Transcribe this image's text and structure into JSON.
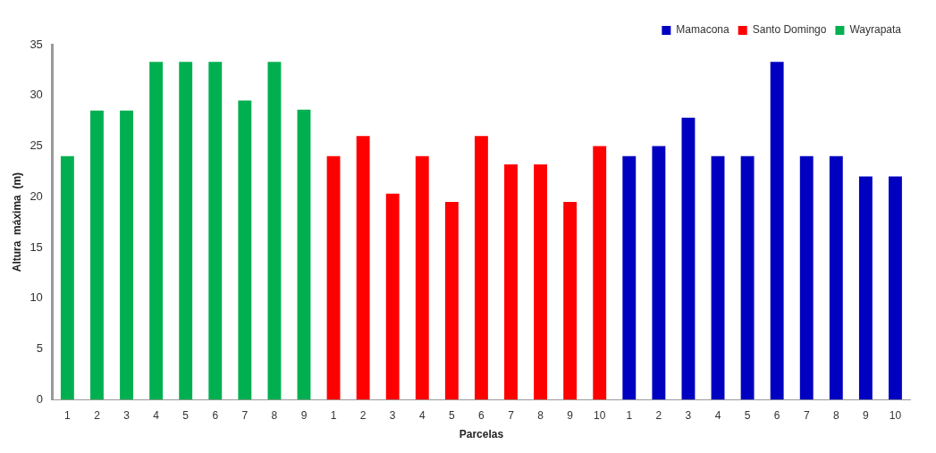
{
  "chart_data": {
    "type": "bar",
    "xlabel": "Parcelas",
    "ylabel": "Altura  máxima  (m)",
    "categories": [
      "1",
      "2",
      "3",
      "4",
      "5",
      "6",
      "7",
      "8",
      "9",
      "1",
      "2",
      "3",
      "4",
      "5",
      "6",
      "7",
      "8",
      "9",
      "10",
      "1",
      "2",
      "3",
      "4",
      "5",
      "6",
      "7",
      "8",
      "9",
      "10"
    ],
    "series": [
      {
        "name": "Mamacona",
        "color": "#0000c0",
        "values": [
          null,
          null,
          null,
          null,
          null,
          null,
          null,
          null,
          null,
          null,
          null,
          null,
          null,
          null,
          null,
          null,
          null,
          null,
          null,
          24,
          25,
          27.8,
          24,
          24,
          33.3,
          24,
          24,
          22,
          22
        ]
      },
      {
        "name": "Santo Domingo",
        "color": "#ff0000",
        "values": [
          null,
          null,
          null,
          null,
          null,
          null,
          null,
          null,
          null,
          24,
          26,
          20.3,
          24,
          19.5,
          26,
          23.2,
          23.2,
          19.5,
          25,
          null,
          null,
          null,
          null,
          null,
          null,
          null,
          null,
          null,
          null
        ]
      },
      {
        "name": "Wayrapata",
        "color": "#00b050",
        "values": [
          24,
          28.5,
          28.5,
          33.3,
          33.3,
          33.3,
          29.5,
          33.3,
          28.6,
          null,
          null,
          null,
          null,
          null,
          null,
          null,
          null,
          null,
          null,
          null,
          null,
          null,
          null,
          null,
          null,
          null,
          null,
          null,
          null
        ]
      }
    ],
    "ylim": [
      0,
      35
    ],
    "yticks": [
      0,
      5,
      10,
      15,
      20,
      25,
      30,
      35
    ],
    "grid": false,
    "legend": "top right"
  }
}
